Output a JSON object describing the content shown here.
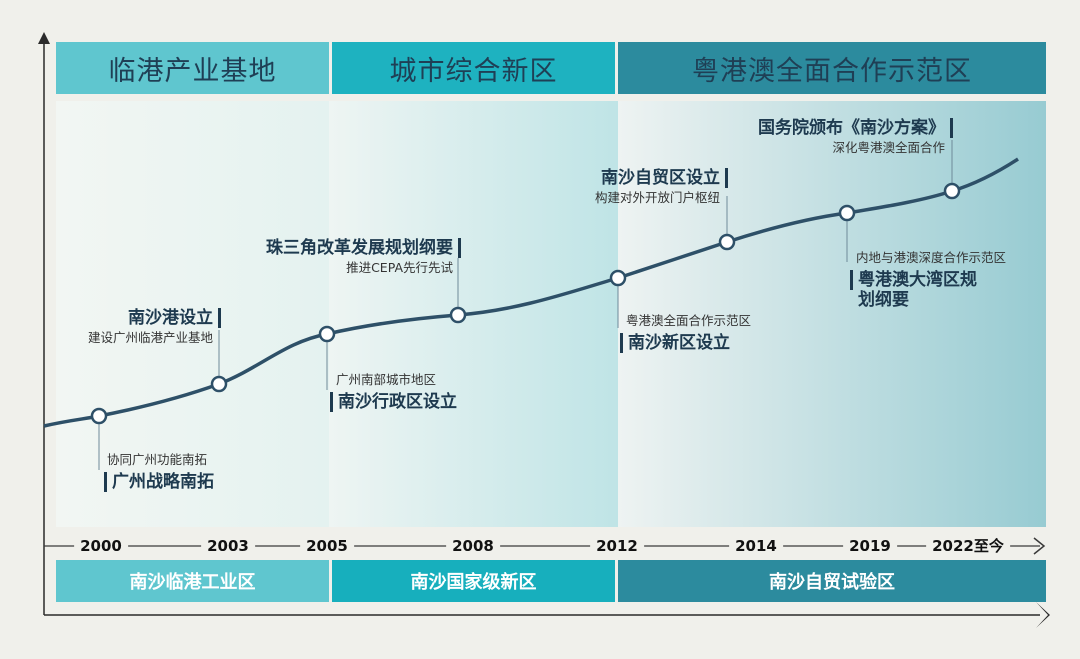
{
  "phases": [
    {
      "label": "临港产业基地"
    },
    {
      "label": "城市综合新区"
    },
    {
      "label": "粤港澳全面合作示范区"
    }
  ],
  "zones": [
    {
      "label": "南沙临港工业区"
    },
    {
      "label": "南沙国家级新区"
    },
    {
      "label": "南沙自贸试验区"
    }
  ],
  "years": [
    "2000",
    "2003",
    "2005",
    "2008",
    "2012",
    "2014",
    "2019",
    "2022至今"
  ],
  "events": [
    {
      "year": "2000",
      "title": "广州战略南拓",
      "subtitle": "协同广州功能南拓"
    },
    {
      "year": "2003",
      "title": "南沙港设立",
      "subtitle": "建设广州临港产业基地"
    },
    {
      "year": "2005",
      "title": "南沙行政区设立",
      "subtitle": "广州南部城市地区"
    },
    {
      "year": "2008",
      "title": "珠三角改革发展规划纲要",
      "subtitle": "推进CEPA先行先试"
    },
    {
      "year": "2012",
      "title": "南沙新区设立",
      "subtitle": "粤港澳全面合作示范区"
    },
    {
      "year": "2014",
      "title": "南沙自贸区设立",
      "subtitle": "构建对外开放门户枢纽"
    },
    {
      "year": "2019",
      "title_line1": "粤港澳大湾区规",
      "title_line2": "划纲要",
      "subtitle": "内地与港澳深度合作示范区"
    },
    {
      "year": "2022至今",
      "title": "国务院颁布《南沙方案》",
      "subtitle": "深化粤港澳全面合作"
    }
  ],
  "colors": {
    "background": "#f0f0eb",
    "phase_light": "#5fc6cf",
    "phase_mid": "#1eb2c0",
    "phase_dark": "#2c8b9e",
    "curve": "#2e5068",
    "text_dark": "#1e3a4f"
  }
}
